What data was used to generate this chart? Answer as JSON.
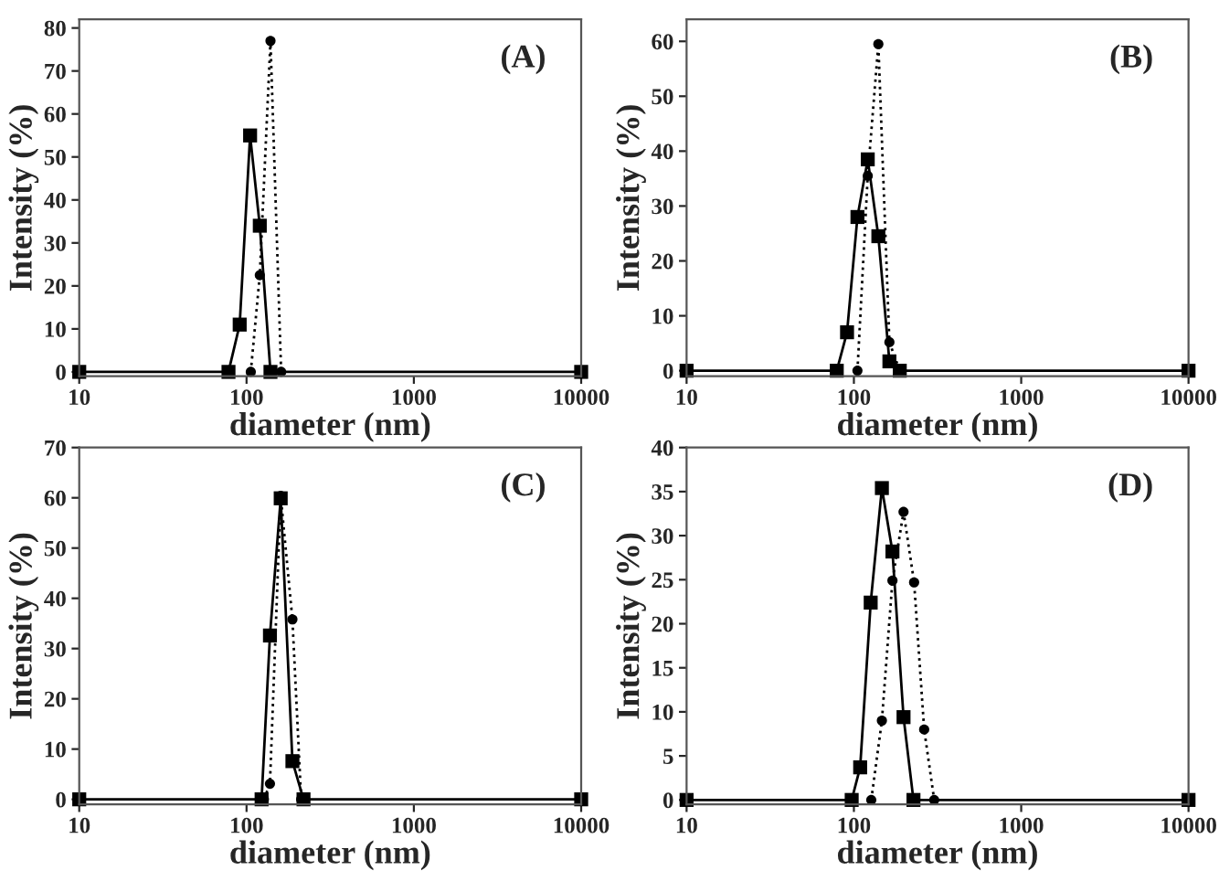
{
  "chart_data": [
    {
      "type": "line",
      "xlabel": "diameter (nm)",
      "ylabel": "Intensity (%)",
      "annotations": [
        "(A)"
      ],
      "log": "x",
      "xlim": [
        10,
        10000
      ],
      "xticks": [
        10,
        100,
        1000,
        10000
      ],
      "ylim": [
        -1,
        82
      ],
      "yticks": [
        0,
        10,
        20,
        30,
        40,
        50,
        60,
        70,
        80
      ],
      "grid": false,
      "legend": false,
      "series": [
        {
          "color": "#000000",
          "marker": "square",
          "line_style": "solid",
          "x": [
            10,
            78,
            91,
            105,
            120,
            139,
            10000
          ],
          "values": [
            0,
            0,
            11,
            55,
            34,
            0,
            0
          ]
        },
        {
          "color": "#000000",
          "marker": "circle",
          "line_style": "dotted",
          "x": [
            106,
            120,
            139,
            161
          ],
          "values": [
            0,
            22.5,
            77,
            0
          ]
        }
      ]
    },
    {
      "type": "line",
      "xlabel": "diameter (nm)",
      "ylabel": "Intensity (%)",
      "annotations": [
        "(B)"
      ],
      "log": "x",
      "xlim": [
        10,
        10000
      ],
      "xticks": [
        10,
        100,
        1000,
        10000
      ],
      "ylim": [
        -1,
        64
      ],
      "yticks": [
        0,
        10,
        20,
        30,
        40,
        50,
        60
      ],
      "grid": false,
      "legend": false,
      "series": [
        {
          "color": "#000000",
          "marker": "square",
          "line_style": "solid",
          "x": [
            10,
            79,
            91,
            105,
            121,
            140,
            163,
            188,
            10000
          ],
          "values": [
            0,
            0,
            7,
            28,
            38.5,
            24.5,
            1.7,
            0,
            0
          ]
        },
        {
          "color": "#000000",
          "marker": "circle",
          "line_style": "dotted",
          "x": [
            105,
            121,
            140,
            163,
            188
          ],
          "values": [
            0,
            35.5,
            59.5,
            5.2,
            0
          ]
        }
      ]
    },
    {
      "type": "line",
      "xlabel": "diameter (nm)",
      "ylabel": "Intensity (%)",
      "annotations": [
        "(C)"
      ],
      "log": "x",
      "xlim": [
        10,
        10000
      ],
      "xticks": [
        10,
        100,
        1000,
        10000
      ],
      "ylim": [
        -1,
        70
      ],
      "yticks": [
        0,
        10,
        20,
        30,
        40,
        50,
        60,
        70
      ],
      "grid": false,
      "legend": false,
      "series": [
        {
          "color": "#000000",
          "marker": "square",
          "line_style": "solid",
          "x": [
            10,
            123,
            138,
            160,
            188,
            219,
            10000
          ],
          "values": [
            0,
            0,
            32.6,
            59.9,
            7.6,
            0,
            0
          ]
        },
        {
          "color": "#000000",
          "marker": "circle",
          "line_style": "dotted",
          "x": [
            127,
            138,
            160,
            188,
            212
          ],
          "values": [
            0,
            3.1,
            60.4,
            35.8,
            0
          ]
        }
      ]
    },
    {
      "type": "line",
      "xlabel": "diameter (nm)",
      "ylabel": "Intensity (%)",
      "annotations": [
        "(D)"
      ],
      "log": "x",
      "xlim": [
        10,
        10000
      ],
      "xticks": [
        10,
        100,
        1000,
        10000
      ],
      "ylim": [
        -0.5,
        40
      ],
      "yticks": [
        0,
        5,
        10,
        15,
        20,
        25,
        30,
        35,
        40
      ],
      "grid": false,
      "legend": false,
      "series": [
        {
          "color": "#000000",
          "marker": "square",
          "line_style": "solid",
          "x": [
            10,
            97,
            109,
            126,
            147,
            170,
            198,
            227,
            10000
          ],
          "values": [
            0,
            0,
            3.7,
            22.4,
            35.4,
            28.2,
            9.4,
            0,
            0
          ]
        },
        {
          "color": "#000000",
          "marker": "circle",
          "line_style": "dotted",
          "x": [
            127,
            147,
            170,
            198,
            229,
            263,
            302
          ],
          "values": [
            0,
            9.0,
            24.9,
            32.7,
            24.7,
            8.0,
            0
          ]
        }
      ]
    }
  ]
}
